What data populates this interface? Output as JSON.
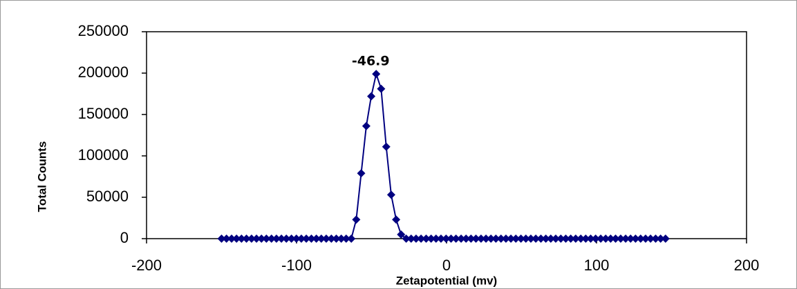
{
  "chart_data": {
    "type": "line",
    "x_label": "Zetapotential (mv)",
    "y_label": "Total Counts",
    "peak_label": "-46.9",
    "x": [
      -150.0,
      -146.7,
      -143.3,
      -140.0,
      -136.7,
      -133.4,
      -130.0,
      -126.7,
      -123.4,
      -120.1,
      -116.7,
      -113.4,
      -110.1,
      -106.8,
      -103.4,
      -100.1,
      -96.8,
      -93.5,
      -90.1,
      -86.8,
      -83.5,
      -80.2,
      -76.8,
      -73.5,
      -70.2,
      -66.9,
      -63.5,
      -60.2,
      -56.9,
      -53.5,
      -50.2,
      -46.9,
      -43.6,
      -40.2,
      -36.9,
      -33.6,
      -30.3,
      -26.9,
      -23.6,
      -20.3,
      -17.0,
      -13.6,
      -10.3,
      -7.0,
      -3.7,
      -0.3,
      3.0,
      6.3,
      9.7,
      13.0,
      16.3,
      19.6,
      23.0,
      26.3,
      29.6,
      32.9,
      36.3,
      39.6,
      42.9,
      46.2,
      49.6,
      52.9,
      56.2,
      59.5,
      62.9,
      66.2,
      69.5,
      72.8,
      76.2,
      79.5,
      82.8,
      86.1,
      89.5,
      92.8,
      96.1,
      99.4,
      102.8,
      106.1,
      109.4,
      112.7,
      116.1,
      119.4,
      122.7,
      126.0,
      129.4,
      132.7,
      136.0,
      139.4,
      142.7,
      146.0
    ],
    "series": [
      {
        "color": "#000080",
        "values": [
          0,
          0,
          0,
          0,
          0,
          0,
          0,
          0,
          0,
          0,
          0,
          0,
          0,
          0,
          0,
          0,
          0,
          0,
          0,
          0,
          0,
          0,
          0,
          0,
          0,
          0,
          0,
          23000,
          79000,
          136000,
          172000,
          199000,
          181000,
          111000,
          53000,
          23000,
          5000,
          0,
          0,
          0,
          0,
          0,
          0,
          0,
          0,
          0,
          0,
          0,
          0,
          0,
          0,
          0,
          0,
          0,
          0,
          0,
          0,
          0,
          0,
          0,
          0,
          0,
          0,
          0,
          0,
          0,
          0,
          0,
          0,
          0,
          0,
          0,
          0,
          0,
          0,
          0,
          0,
          0,
          0,
          0,
          0,
          0,
          0,
          0,
          0,
          0,
          0,
          0,
          0,
          0
        ]
      }
    ],
    "xlim": [
      -200,
      200
    ],
    "xticks": [
      -200,
      -100,
      0,
      100,
      200
    ],
    "ylim": [
      0,
      250000
    ],
    "yticks": [
      0,
      50000,
      100000,
      150000,
      200000,
      250000
    ]
  }
}
